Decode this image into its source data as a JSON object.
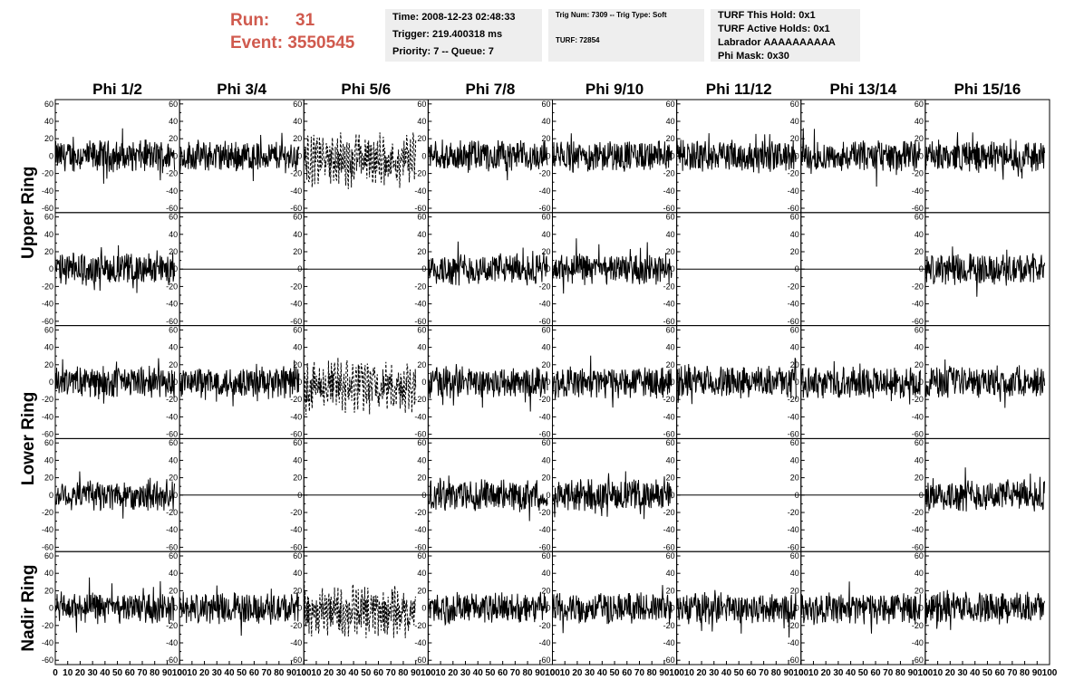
{
  "header": {
    "run_label": "Run:",
    "run_value": "31",
    "event_label": "Event:",
    "event_value": "3550545",
    "time_line": "Time: 2008-12-23 02:48:33",
    "trigger_line": "Trigger: 219.400318 ms",
    "priority_line": "Priority: 7 -- Queue: 7",
    "trig_num_line": "Trig Num: 7309 -- Trig Type: Soft",
    "turf_line": "TURF: 72854",
    "turf_this_hold": "TURF This Hold: 0x1",
    "turf_active_holds": "TURF Active Holds: 0x1",
    "labrador": "Labrador AAAAAAAAAA",
    "phi_mask": "Phi Mask: 0x30",
    "accent_color": "#d05a4e",
    "box_color": "#eeeeee"
  },
  "columns": [
    "Phi 1/2",
    "Phi 3/4",
    "Phi 5/6",
    "Phi 7/8",
    "Phi 9/10",
    "Phi 11/12",
    "Phi 13/14",
    "Phi 15/16"
  ],
  "ring_labels": [
    "Upper Ring",
    "Lower Ring",
    "Nadir Ring"
  ],
  "chart_data": {
    "type": "line",
    "rows": 5,
    "cols": 8,
    "ylim": [
      -65,
      65
    ],
    "yticks": [
      -60,
      -40,
      -20,
      0,
      20,
      40,
      60
    ],
    "xlim": [
      0,
      100
    ],
    "xticks": [
      0,
      10,
      20,
      30,
      40,
      50,
      60,
      70,
      80,
      90,
      100
    ],
    "grid": false,
    "waveforms": [
      [
        "noise",
        "noise",
        "dashed",
        "noise",
        "noise",
        "noise",
        "noise",
        "noise"
      ],
      [
        "noise",
        "flat",
        "flat",
        "noise",
        "noise",
        "flat",
        "flat",
        "noise"
      ],
      [
        "noise",
        "noise",
        "dashed",
        "noise",
        "noise",
        "noise",
        "noise",
        "noise"
      ],
      [
        "noise",
        "flat",
        "flat",
        "noise",
        "noise",
        "flat",
        "flat",
        "noise"
      ],
      [
        "noise",
        "noise",
        "dashed",
        "noise",
        "noise",
        "noise",
        "noise",
        "noise"
      ]
    ],
    "approx_amplitude": 20,
    "samples_per_trace": 260
  }
}
